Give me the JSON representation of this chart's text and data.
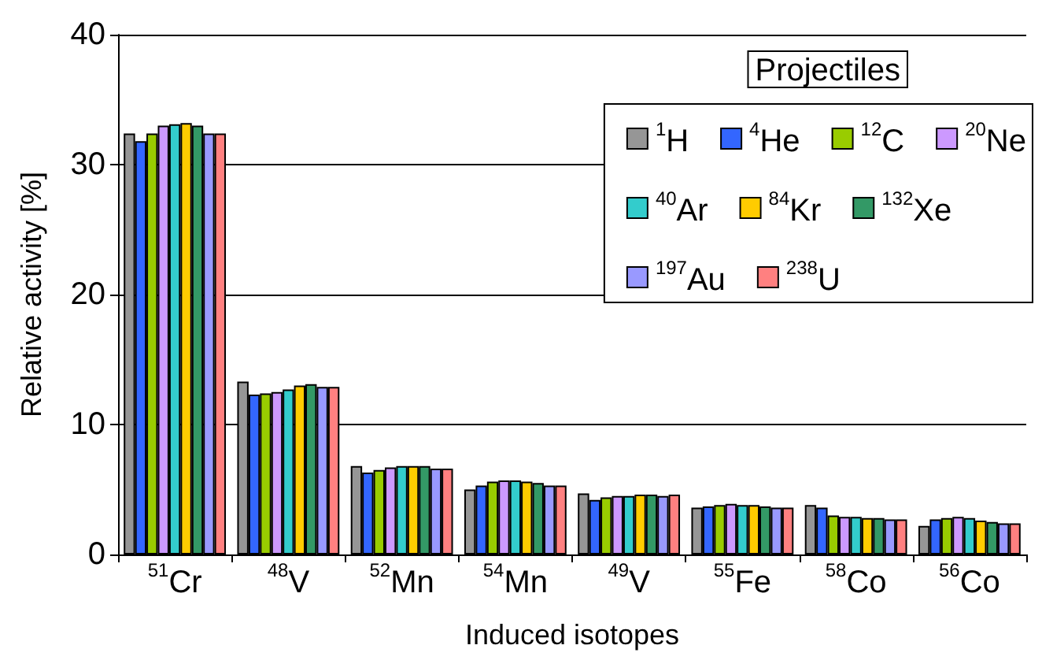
{
  "chart_data": {
    "type": "bar",
    "xlabel": "Induced isotopes",
    "ylabel": "Relative activity [%]",
    "legend_title": "Projectiles",
    "categories": [
      "$^{51}$Cr",
      "$^{48}$V",
      "$^{52}$Mn",
      "$^{54}$Mn",
      "$^{49}$V",
      "$^{55}$Fe",
      "$^{58}$Co",
      "$^{56}$Co"
    ],
    "series": [
      {
        "name": "$^{1}$H",
        "color": "#969696",
        "values": [
          32.4,
          13.3,
          6.8,
          5.0,
          4.7,
          3.6,
          3.8,
          2.2
        ]
      },
      {
        "name": "$^{4}$He",
        "color": "#3366ff",
        "values": [
          31.8,
          12.3,
          6.3,
          5.3,
          4.2,
          3.7,
          3.6,
          2.7
        ]
      },
      {
        "name": "$^{12}$C",
        "color": "#99cc00",
        "values": [
          32.4,
          12.4,
          6.5,
          5.6,
          4.4,
          3.8,
          3.0,
          2.8
        ]
      },
      {
        "name": "$^{20}$Ne",
        "color": "#cc99ff",
        "values": [
          33.0,
          12.5,
          6.7,
          5.7,
          4.5,
          3.9,
          2.9,
          2.9
        ]
      },
      {
        "name": "$^{40}$Ar",
        "color": "#33cccc",
        "values": [
          33.1,
          12.7,
          6.8,
          5.7,
          4.5,
          3.8,
          2.9,
          2.8
        ]
      },
      {
        "name": "$^{84}$Kr",
        "color": "#ffcc00",
        "values": [
          33.2,
          13.0,
          6.8,
          5.6,
          4.6,
          3.8,
          2.8,
          2.6
        ]
      },
      {
        "name": "$^{132}$Xe",
        "color": "#339966",
        "values": [
          33.0,
          13.1,
          6.8,
          5.5,
          4.6,
          3.7,
          2.8,
          2.5
        ]
      },
      {
        "name": "$^{197}$Au",
        "color": "#9999ff",
        "values": [
          32.4,
          12.9,
          6.6,
          5.3,
          4.5,
          3.6,
          2.7,
          2.4
        ]
      },
      {
        "name": "$^{238}$U",
        "color": "#ff8080",
        "values": [
          32.4,
          12.9,
          6.6,
          5.3,
          4.6,
          3.6,
          2.7,
          2.4
        ]
      }
    ],
    "ylim": [
      0,
      40
    ],
    "yticks": [
      0,
      10,
      20,
      30,
      40
    ],
    "grid": "y",
    "legend": "top right"
  }
}
